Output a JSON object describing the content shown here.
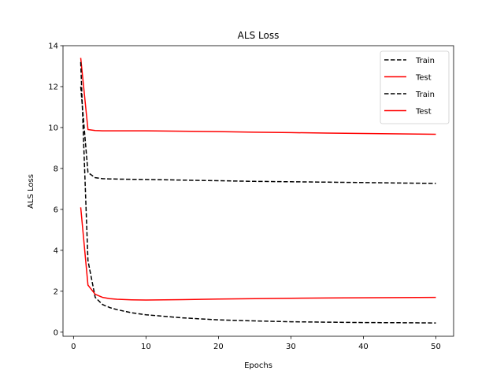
{
  "chart_data": {
    "type": "line",
    "title": "ALS Loss",
    "xlabel": "Epochs",
    "ylabel": "ALS Loss",
    "xlim": [
      -1.45,
      52.45
    ],
    "ylim": [
      -0.2,
      14
    ],
    "xticks": [
      0,
      10,
      20,
      30,
      40,
      50
    ],
    "yticks": [
      0,
      2,
      4,
      6,
      8,
      10,
      12,
      14
    ],
    "grid": false,
    "legend_position": "top-right",
    "series": [
      {
        "name": "Train",
        "color": "#000000",
        "style": "dashed",
        "x": [
          1,
          2,
          3,
          4,
          5,
          6,
          8,
          10,
          15,
          20,
          25,
          30,
          35,
          40,
          45,
          50
        ],
        "y": [
          12.0,
          7.8,
          7.55,
          7.5,
          7.49,
          7.48,
          7.47,
          7.46,
          7.43,
          7.4,
          7.37,
          7.35,
          7.33,
          7.31,
          7.29,
          7.27
        ]
      },
      {
        "name": "Test",
        "color": "#ff0000",
        "style": "solid",
        "x": [
          1,
          2,
          3,
          4,
          5,
          6,
          8,
          10,
          15,
          20,
          25,
          30,
          35,
          40,
          45,
          50
        ],
        "y": [
          13.4,
          9.9,
          9.85,
          9.84,
          9.84,
          9.84,
          9.84,
          9.84,
          9.82,
          9.8,
          9.77,
          9.75,
          9.73,
          9.71,
          9.69,
          9.67
        ]
      },
      {
        "name": "Train",
        "color": "#000000",
        "style": "dashed",
        "x": [
          1,
          2,
          3,
          4,
          5,
          6,
          8,
          10,
          15,
          20,
          25,
          30,
          35,
          40,
          45,
          50
        ],
        "y": [
          13.2,
          3.5,
          1.7,
          1.35,
          1.2,
          1.1,
          0.95,
          0.85,
          0.7,
          0.6,
          0.55,
          0.51,
          0.49,
          0.47,
          0.46,
          0.45
        ]
      },
      {
        "name": "Test",
        "color": "#ff0000",
        "style": "solid",
        "x": [
          1,
          2,
          3,
          4,
          5,
          6,
          8,
          10,
          15,
          20,
          25,
          30,
          35,
          40,
          45,
          50
        ],
        "y": [
          6.1,
          2.3,
          1.85,
          1.7,
          1.64,
          1.61,
          1.58,
          1.57,
          1.59,
          1.62,
          1.64,
          1.66,
          1.67,
          1.68,
          1.69,
          1.7
        ]
      }
    ]
  }
}
